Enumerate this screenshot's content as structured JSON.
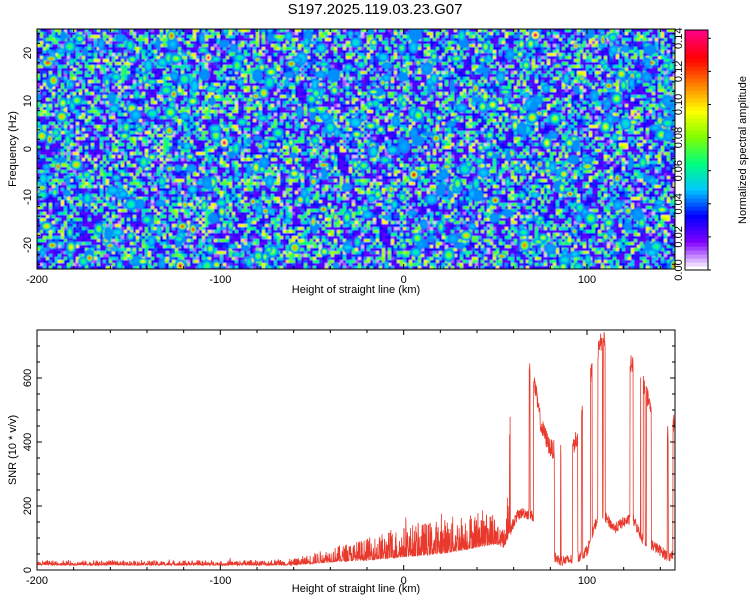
{
  "page": {
    "title": "S197.2025.119.03.23.G07"
  },
  "chart_data": [
    {
      "type": "heatmap",
      "title": "S197.2025.119.03.23.G07",
      "xlabel": "Height of straight line (km)",
      "ylabel": "Frequency (Hz)",
      "xlim": [
        -200,
        148
      ],
      "ylim": [
        -25,
        25
      ],
      "xticks": [
        "-200",
        "-100",
        "0",
        "100"
      ],
      "yticks": [
        "-20",
        "-10",
        "0",
        "10",
        "20"
      ],
      "colorbar": {
        "label": "Normalized spectral amplitude",
        "range": [
          0,
          0.145
        ],
        "ticks": [
          "0.00",
          "0.02",
          "0.04",
          "0.06",
          "0.08",
          "0.10",
          "0.12",
          "0.14"
        ],
        "colormap": [
          "#ffffff",
          "#8000ff",
          "#0000ff",
          "#00c8ff",
          "#00ff80",
          "#80ff00",
          "#ffff00",
          "#ff8000",
          "#ff0000",
          "#ff0080"
        ]
      },
      "grid": false,
      "legend": "none"
    },
    {
      "type": "line",
      "xlabel": "Height of straight line (km)",
      "ylabel": "SNR (10 * v/v)",
      "xlim": [
        -200,
        148
      ],
      "ylim": [
        0,
        750
      ],
      "xticks": [
        "-200",
        "-100",
        "0",
        "100"
      ],
      "yticks": [
        "0",
        "200",
        "400",
        "600"
      ],
      "line_color": "#e8392c",
      "grid": false,
      "legend": "none",
      "series_profile": {
        "x": [
          -200,
          -100,
          -60,
          -40,
          -20,
          0,
          20,
          40,
          50,
          55,
          60,
          62,
          65,
          70,
          75,
          80,
          85,
          90,
          95,
          100,
          105,
          108,
          112,
          115,
          120,
          125,
          130,
          135,
          140,
          145,
          148
        ],
        "upper": [
          30,
          30,
          35,
          70,
          100,
          140,
          160,
          190,
          180,
          130,
          680,
          710,
          690,
          630,
          450,
          380,
          370,
          360,
          420,
          560,
          670,
          720,
          700,
          690,
          650,
          640,
          600,
          500,
          450,
          420,
          470
        ],
        "lower": [
          15,
          15,
          15,
          25,
          30,
          40,
          50,
          70,
          80,
          70,
          150,
          170,
          180,
          170,
          130,
          50,
          30,
          30,
          40,
          60,
          150,
          180,
          150,
          130,
          150,
          160,
          100,
          80,
          60,
          40,
          60
        ]
      }
    }
  ]
}
